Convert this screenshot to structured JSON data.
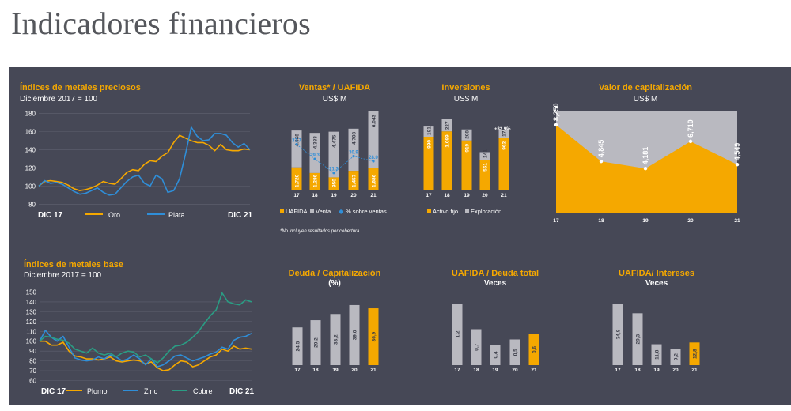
{
  "page_title": "Indicadores financieros",
  "colors": {
    "panel": "#464856",
    "gold": "#f5a800",
    "gray": "#b9b9c0",
    "blue": "#2f8ed8",
    "teal": "#2a9d84",
    "white": "#ffffff"
  },
  "chart_data": [
    {
      "id": "preciosos",
      "type": "line",
      "title": "Índices de metales preciosos",
      "subtitle": "Diciembre 2017 = 100",
      "x_start": "DIC 17",
      "x_end": "DIC 21",
      "yticks": [
        80,
        100,
        120,
        140,
        160,
        180
      ],
      "ylim": [
        75,
        185
      ],
      "series": [
        {
          "name": "Oro",
          "color": "#f5a800",
          "values": [
            100,
            105,
            106,
            105,
            104,
            101,
            97,
            95,
            96,
            98,
            101,
            105,
            103,
            102,
            108,
            115,
            118,
            117,
            124,
            128,
            127,
            133,
            137,
            148,
            156,
            153,
            150,
            148,
            148,
            145,
            139,
            146,
            140,
            139,
            139,
            141,
            140
          ]
        },
        {
          "name": "Plata",
          "color": "#2f8ed8",
          "values": [
            100,
            106,
            103,
            104,
            102,
            98,
            94,
            91,
            92,
            95,
            98,
            93,
            90,
            91,
            98,
            105,
            110,
            112,
            103,
            100,
            112,
            108,
            93,
            95,
            108,
            135,
            165,
            155,
            150,
            151,
            158,
            158,
            156,
            148,
            143,
            147,
            140
          ]
        }
      ]
    },
    {
      "id": "ventas",
      "type": "bar",
      "title": "Ventas* / UAFIDA",
      "subtitle": "US$ M",
      "categories": [
        "17",
        "18",
        "19",
        "20",
        "21"
      ],
      "series": [
        {
          "name": "UAFIDA",
          "color": "#f5a800",
          "values": [
            1720,
            1286,
            950,
            1457,
            1686
          ],
          "labels": [
            "1.720",
            "1.286",
            "950",
            "1.457",
            "1.686"
          ]
        },
        {
          "name": "Venta",
          "color": "#b9b9c0",
          "values": [
            4568,
            4383,
            4475,
            4708,
            6043
          ],
          "labels": [
            "4.568",
            "4.383",
            "4.475",
            "4.708",
            "6.043"
          ]
        },
        {
          "name": "% sobre ventas",
          "color": "#2f8ed8",
          "values": [
            37.7,
            29.3,
            21.3,
            30.9,
            28.0
          ],
          "labels": [
            "37.7",
            "29.3",
            "21.3",
            "30.9",
            "28.0"
          ]
        }
      ],
      "note": "*No incluyen resultados por cobertura"
    },
    {
      "id": "inversiones",
      "type": "bar",
      "title": "Inversiones",
      "subtitle": "US$ M",
      "categories": [
        "17",
        "18",
        "19",
        "20",
        "21"
      ],
      "series": [
        {
          "name": "Activo fijo",
          "color": "#f5a800",
          "values": [
            990,
            1089,
            919,
            561,
            962
          ],
          "labels": [
            "990",
            "1.089",
            "919",
            "561",
            "962"
          ]
        },
        {
          "name": "Exploración",
          "color": "#b9b9c0",
          "values": [
            191,
            227,
            208,
            141,
            171
          ],
          "labels": [
            "191",
            "227",
            "208",
            "141",
            "171"
          ]
        }
      ],
      "annotation": "+32,9%"
    },
    {
      "id": "capitalizacion",
      "type": "area",
      "title": "Valor de capitalización",
      "subtitle": "US$ M",
      "categories": [
        "17",
        "18",
        "19",
        "20",
        "21"
      ],
      "values": [
        8250,
        4845,
        4181,
        6710,
        4549
      ],
      "labels": [
        "8,250",
        "4,845",
        "4,181",
        "6,710",
        "4,549"
      ],
      "ylim": [
        0,
        9500
      ]
    },
    {
      "id": "base",
      "type": "line",
      "title": "Índices de metales base",
      "subtitle": "Diciembre 2017 = 100",
      "x_start": "DIC 17",
      "x_end": "DIC 21",
      "yticks": [
        60,
        70,
        80,
        90,
        100,
        110,
        120,
        130,
        140,
        150
      ],
      "ylim": [
        58,
        152
      ],
      "series": [
        {
          "name": "Plomo",
          "color": "#f5a800",
          "values": [
            100,
            100,
            96,
            96,
            99,
            90,
            85,
            84,
            82,
            82,
            81,
            82,
            84,
            80,
            79,
            80,
            81,
            80,
            77,
            79,
            73,
            70,
            71,
            76,
            80,
            79,
            74,
            76,
            80,
            84,
            86,
            92,
            90,
            95,
            92,
            93,
            92
          ]
        },
        {
          "name": "Zinc",
          "color": "#2f8ed8",
          "values": [
            100,
            111,
            104,
            100,
            105,
            94,
            83,
            81,
            80,
            81,
            84,
            82,
            86,
            84,
            80,
            82,
            86,
            82,
            76,
            82,
            74,
            76,
            80,
            85,
            86,
            83,
            80,
            82,
            84,
            87,
            89,
            94,
            92,
            101,
            104,
            105,
            108
          ]
        },
        {
          "name": "Cobre",
          "color": "#2a9d84",
          "values": [
            100,
            105,
            104,
            102,
            101,
            98,
            92,
            90,
            88,
            93,
            88,
            86,
            88,
            84,
            88,
            90,
            89,
            84,
            86,
            82,
            78,
            83,
            90,
            95,
            96,
            99,
            104,
            110,
            118,
            126,
            132,
            149,
            140,
            138,
            137,
            142,
            140
          ]
        }
      ]
    },
    {
      "id": "deuda_cap",
      "type": "bar",
      "title": "Deuda / Capitalización",
      "subtitle": "(%)",
      "categories": [
        "17",
        "18",
        "19",
        "20",
        "21"
      ],
      "values": [
        24.5,
        29.2,
        33.2,
        39.0,
        36.9
      ],
      "labels": [
        "24,5",
        "29,2",
        "33,2",
        "39,0",
        "36,9"
      ],
      "highlight_last": true
    },
    {
      "id": "uafida_deuda",
      "type": "bar",
      "title": "UAFIDA / Deuda total",
      "subtitle": "Veces",
      "categories": [
        "17",
        "18",
        "19",
        "20",
        "21"
      ],
      "values": [
        1.2,
        0.7,
        0.4,
        0.5,
        0.6
      ],
      "labels": [
        "1,2",
        "0,7",
        "0,4",
        "0,5",
        "0,6"
      ],
      "highlight_last": true
    },
    {
      "id": "uafida_int",
      "type": "bar",
      "title": "UAFIDA/ Intereses",
      "subtitle": "Veces",
      "categories": [
        "17",
        "18",
        "19",
        "20",
        "21"
      ],
      "values": [
        34.8,
        29.3,
        11.8,
        9.2,
        12.8
      ],
      "labels": [
        "34,8",
        "29,3",
        "11,8",
        "9,2",
        "12,8"
      ],
      "highlight_last": true
    }
  ]
}
